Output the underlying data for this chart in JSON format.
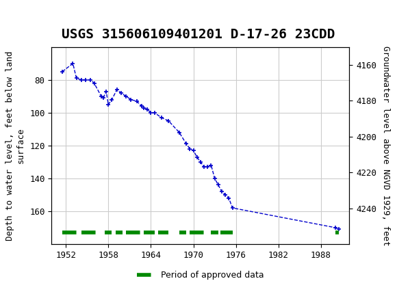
{
  "title": "USGS 315606109401201 D-17-26 23CDD",
  "ylabel_left": "Depth to water level, feet below land\nsurface",
  "ylabel_right": "Groundwater level above NGVD 1929, feet",
  "xlim": [
    1950,
    1992
  ],
  "ylim_left": [
    60,
    180
  ],
  "ylim_right": [
    4150,
    4260
  ],
  "xticks": [
    1952,
    1958,
    1964,
    1970,
    1976,
    1982,
    1988
  ],
  "yticks_left": [
    80,
    100,
    120,
    140,
    160
  ],
  "yticks_right": [
    4160,
    4180,
    4200,
    4220,
    4240
  ],
  "grid_color": "#cccccc",
  "bg_color": "#ffffff",
  "header_color": "#006633",
  "data_line_color": "#0000cc",
  "approved_color": "#008800",
  "title_fontsize": 14,
  "axis_label_fontsize": 9,
  "tick_fontsize": 9,
  "data_points_x": [
    1951.5,
    1953.0,
    1953.5,
    1954.2,
    1954.8,
    1955.5,
    1956.0,
    1957.0,
    1957.3,
    1957.7,
    1958.0,
    1958.5,
    1959.2,
    1959.8,
    1960.5,
    1961.2,
    1962.0,
    1962.7,
    1963.0,
    1963.5,
    1964.0,
    1964.5,
    1965.5,
    1966.5,
    1968.0,
    1969.0,
    1969.5,
    1970.0,
    1970.5,
    1971.0,
    1971.5,
    1972.0,
    1972.5,
    1973.0,
    1973.5,
    1974.0,
    1974.5,
    1975.0,
    1975.5,
    1990.0,
    1990.5
  ],
  "data_points_y": [
    75,
    70,
    79,
    80,
    80,
    80,
    82,
    90,
    91,
    87,
    95,
    92,
    86,
    88,
    90,
    92,
    93,
    96,
    97,
    98,
    100,
    100,
    103,
    105,
    112,
    119,
    122,
    123,
    127,
    130,
    133,
    133,
    132,
    140,
    144,
    148,
    150,
    152,
    158,
    170,
    171
  ],
  "approved_segments_x": [
    [
      1951.5,
      1953.5
    ],
    [
      1954.2,
      1956.5
    ],
    [
      1957.5,
      1958.5
    ],
    [
      1959.0,
      1960.0
    ],
    [
      1960.5,
      1962.5
    ],
    [
      1963.0,
      1964.5
    ],
    [
      1965.0,
      1966.5
    ],
    [
      1968.0,
      1969.0
    ],
    [
      1969.5,
      1971.5
    ],
    [
      1972.5,
      1973.5
    ],
    [
      1973.8,
      1975.5
    ],
    [
      1990.0,
      1990.5
    ]
  ],
  "approved_y": 173
}
